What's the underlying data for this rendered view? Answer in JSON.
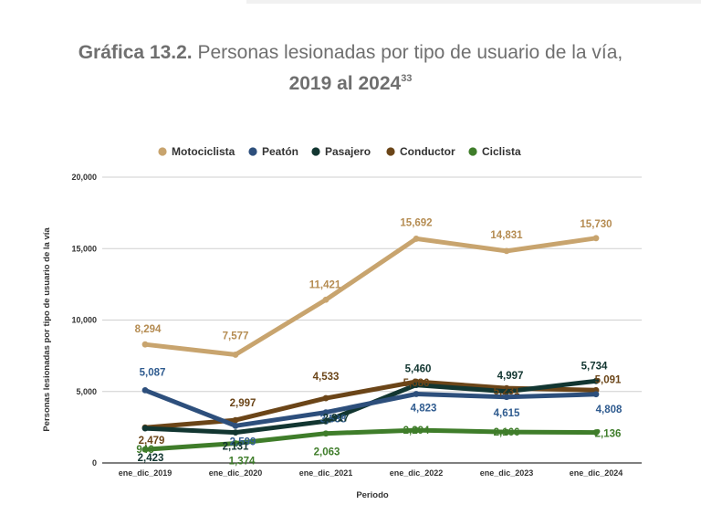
{
  "title": {
    "bold_prefix": "Gráfica 13.2.",
    "rest": " Personas lesionadas por tipo de usuario de la vía,",
    "line2": "2019 al 2024",
    "footnote": "33"
  },
  "chart_data": {
    "type": "line",
    "categories": [
      "ene_dic_2019",
      "ene_dic_2020",
      "ene_dic_2021",
      "ene_dic_2022",
      "ene_dic_2023",
      "ene_dic_2024"
    ],
    "ylabel": "Personas lesionadas por tipo de usuario de la vía",
    "xlabel": "Periodo",
    "ylim": [
      0,
      20000
    ],
    "yticks": [
      0,
      5000,
      10000,
      15000,
      20000
    ],
    "ytick_labels": [
      "0",
      "5,000",
      "10,000",
      "15,000",
      "20,000"
    ],
    "grid": true,
    "legend_position": "top",
    "series": [
      {
        "name": "Motociclista",
        "color": "#c8a46e",
        "label_color": "#b58c52",
        "values": [
          8294,
          7577,
          11421,
          15692,
          14831,
          15730
        ],
        "labels": [
          "8,294",
          "7,577",
          "11,421",
          "15,692",
          "14,831",
          "15,730"
        ]
      },
      {
        "name": "Peatón",
        "color": "#2d4f7c",
        "label_color": "#2f5b8f",
        "values": [
          5087,
          2599,
          3538,
          4823,
          4615,
          4808
        ],
        "labels": [
          "5,087",
          "2,599",
          "3,538",
          "4,823",
          "4,615",
          "4,808"
        ]
      },
      {
        "name": "Pasajero",
        "color": "#123631",
        "label_color": "#123631",
        "values": [
          2423,
          2131,
          2917,
          5460,
          4997,
          5734
        ],
        "labels": [
          "2,423",
          "2,131",
          "2,917",
          "5,460",
          "4,997",
          "5,734"
        ]
      },
      {
        "name": "Conductor",
        "color": "#6b4518",
        "label_color": "#6b4518",
        "values": [
          2479,
          2997,
          4533,
          5686,
          5231,
          5091
        ],
        "labels": [
          "2,479",
          "2,997",
          "4,533",
          "5,686",
          "5,231",
          "5,091"
        ]
      },
      {
        "name": "Ciclista",
        "color": "#3f7d2a",
        "label_color": "#3f7d2a",
        "values": [
          946,
          1374,
          2063,
          2294,
          2166,
          2136
        ],
        "labels": [
          "946",
          "1,374",
          "2,063",
          "2,294",
          "2,166",
          "2,136"
        ]
      }
    ]
  }
}
